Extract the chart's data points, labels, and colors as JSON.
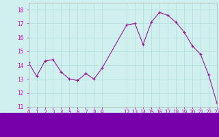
{
  "x": [
    0,
    1,
    2,
    3,
    4,
    5,
    6,
    7,
    8,
    9,
    12,
    13,
    14,
    15,
    16,
    17,
    18,
    19,
    20,
    21,
    22,
    23
  ],
  "y": [
    14.2,
    13.2,
    14.3,
    14.4,
    13.5,
    13.0,
    12.9,
    13.4,
    13.0,
    13.8,
    16.9,
    17.0,
    15.5,
    17.1,
    17.8,
    17.6,
    17.1,
    16.4,
    15.4,
    14.8,
    13.3,
    11.3
  ],
  "line_color": "#991899",
  "marker_color": "#991899",
  "bg_color": "#cff0ee",
  "grid_color": "#b0dcd8",
  "bottom_bar_color": "#7700aa",
  "xlim": [
    0,
    23
  ],
  "ylim": [
    11,
    18.5
  ],
  "yticks": [
    11,
    12,
    13,
    14,
    15,
    16,
    17,
    18
  ],
  "xlabel_color": "#cc00cc",
  "xlabel_fontsize": 6.5,
  "tick_fontsize": 5.5
}
